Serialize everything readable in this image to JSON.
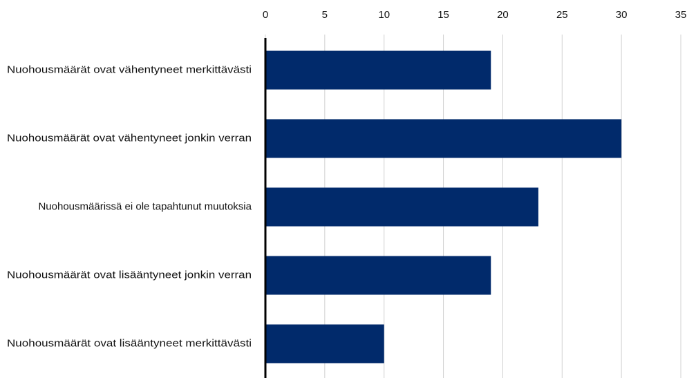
{
  "chart_data": {
    "type": "bar",
    "orientation": "horizontal",
    "categories": [
      "Nuohousmäärät ovat vähentyneet merkittävästi",
      "Nuohousmäärät ovat vähentyneet jonkin verran",
      "Nuohousmäärissä ei ole tapahtunut muutoksia",
      "Nuohousmäärät ovat lisääntyneet jonkin verran",
      "Nuohousmäärät ovat lisääntyneet merkittävästi"
    ],
    "values": [
      19,
      30,
      23,
      19,
      10
    ],
    "color": "#012a6b",
    "xlim": [
      0,
      35
    ],
    "xticks": [
      0,
      5,
      10,
      15,
      20,
      25,
      30,
      35
    ],
    "grid": true
  }
}
